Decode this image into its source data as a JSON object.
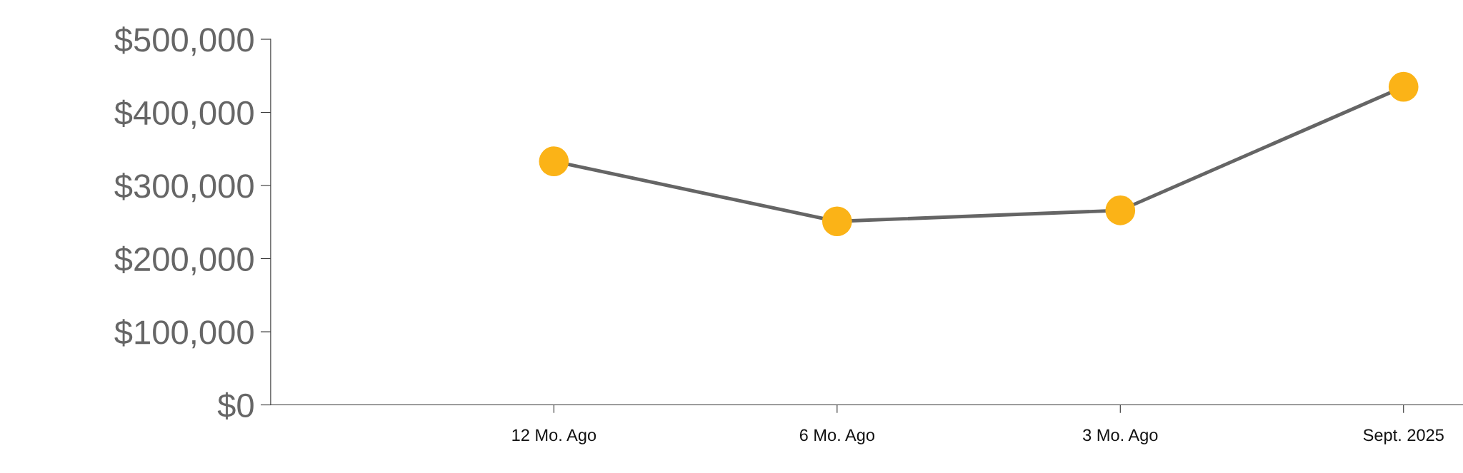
{
  "chart_data": {
    "type": "line",
    "categories": [
      "12 Mo. Ago",
      "6 Mo. Ago",
      "3 Mo. Ago",
      "Sept. 2025"
    ],
    "series": [
      {
        "color": "#656565",
        "colors": [
          "#fbb317",
          "#fbb317",
          "#fbb317",
          "#fbb317"
        ],
        "values": [
          333000,
          251000,
          266000,
          435000
        ]
      }
    ],
    "marker": "circle",
    "line_style": "solid",
    "ylim": [
      0,
      500000
    ],
    "yticks": [
      {
        "value": 0,
        "label": "$0"
      },
      {
        "value": 100000,
        "label": "$100,000"
      },
      {
        "value": 200000,
        "label": "$200,000"
      },
      {
        "value": 300000,
        "label": "$300,000"
      },
      {
        "value": 400000,
        "label": "$400,000"
      },
      {
        "value": 500000,
        "label": "$500,000"
      }
    ],
    "grid": false
  }
}
